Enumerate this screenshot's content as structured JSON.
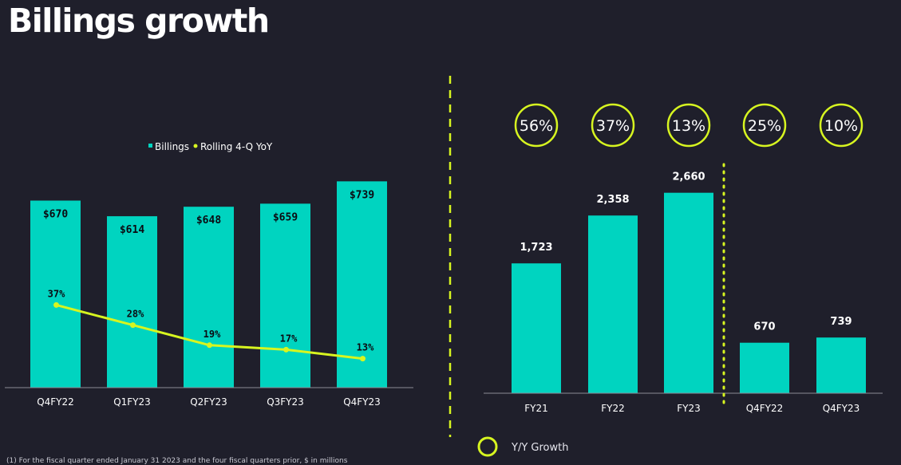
{
  "page": {
    "title": "Billings growth",
    "footnote": "(1) For the fiscal quarter ended January 31 2023 and the four fiscal quarters prior, $ in millions"
  },
  "colors": {
    "background": "#1f1f2b",
    "bar": "#00d4c0",
    "accent": "#d7f520",
    "text": "#ffffff",
    "axis": "#8b8b96"
  },
  "chart_data": [
    {
      "type": "bar",
      "title": "",
      "legend": [
        "Billings",
        "Rolling 4-Q YoY"
      ],
      "legend_position": "top-center",
      "categories": [
        "Q4FY22",
        "Q1FY23",
        "Q2FY23",
        "Q3FY23",
        "Q4FY23"
      ],
      "series": [
        {
          "name": "Billings",
          "type": "bar",
          "values": [
            670,
            614,
            648,
            659,
            739
          ],
          "labels": [
            "$670",
            "$614",
            "$648",
            "$659",
            "$739"
          ]
        },
        {
          "name": "Rolling 4-Q YoY",
          "type": "line",
          "values": [
            37,
            28,
            19,
            17,
            13
          ],
          "labels": [
            "37%",
            "28%",
            "19%",
            "17%",
            "13%"
          ]
        }
      ],
      "xlabel": "",
      "ylabel": "",
      "ylim": [
        0,
        800
      ],
      "y2lim": [
        0,
        100
      ],
      "grid": false
    },
    {
      "type": "bar",
      "title": "",
      "categories": [
        "FY21",
        "FY22",
        "FY23",
        "Q4FY22",
        "Q4FY23"
      ],
      "values": [
        1723,
        2358,
        2660,
        670,
        739
      ],
      "labels": [
        "1,723",
        "2,358",
        "2,660",
        "670",
        "739"
      ],
      "growth": [
        "56%",
        "37%",
        "13%",
        "25%",
        "10%"
      ],
      "legend": [
        "Y/Y Growth"
      ],
      "legend_position": "bottom-center",
      "xlabel": "",
      "ylabel": "",
      "ylim": [
        0,
        2900
      ],
      "grid": false
    }
  ]
}
